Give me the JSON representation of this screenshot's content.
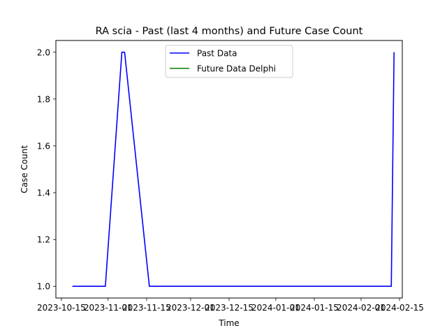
{
  "chart_data": {
    "type": "line",
    "title": "RA scia - Past (last 4 months) and Future Case Count",
    "xlabel": "Time",
    "ylabel": "Case Count",
    "xlim": [
      "2023-10-13",
      "2024-02-16"
    ],
    "ylim": [
      0.95,
      2.05
    ],
    "x_ticks": [
      "2023-10-15",
      "2023-11-01",
      "2023-11-15",
      "2023-12-01",
      "2023-12-15",
      "2024-01-01",
      "2024-01-15",
      "2024-02-01",
      "2024-02-15"
    ],
    "y_ticks": [
      "1.0",
      "1.2",
      "1.4",
      "1.6",
      "1.8",
      "2.0"
    ],
    "grid": false,
    "legend_position": "top-center",
    "series": [
      {
        "name": "Past Data",
        "color": "#0000ff",
        "points": [
          {
            "x": "2023-10-19",
            "y": 1
          },
          {
            "x": "2023-10-31",
            "y": 1
          },
          {
            "x": "2023-11-06",
            "y": 2
          },
          {
            "x": "2023-11-07",
            "y": 2
          },
          {
            "x": "2023-11-16",
            "y": 1
          },
          {
            "x": "2024-02-12",
            "y": 1
          },
          {
            "x": "2024-02-13",
            "y": 2
          }
        ]
      },
      {
        "name": "Future Data Delphi",
        "color": "#008000",
        "points": []
      }
    ]
  }
}
